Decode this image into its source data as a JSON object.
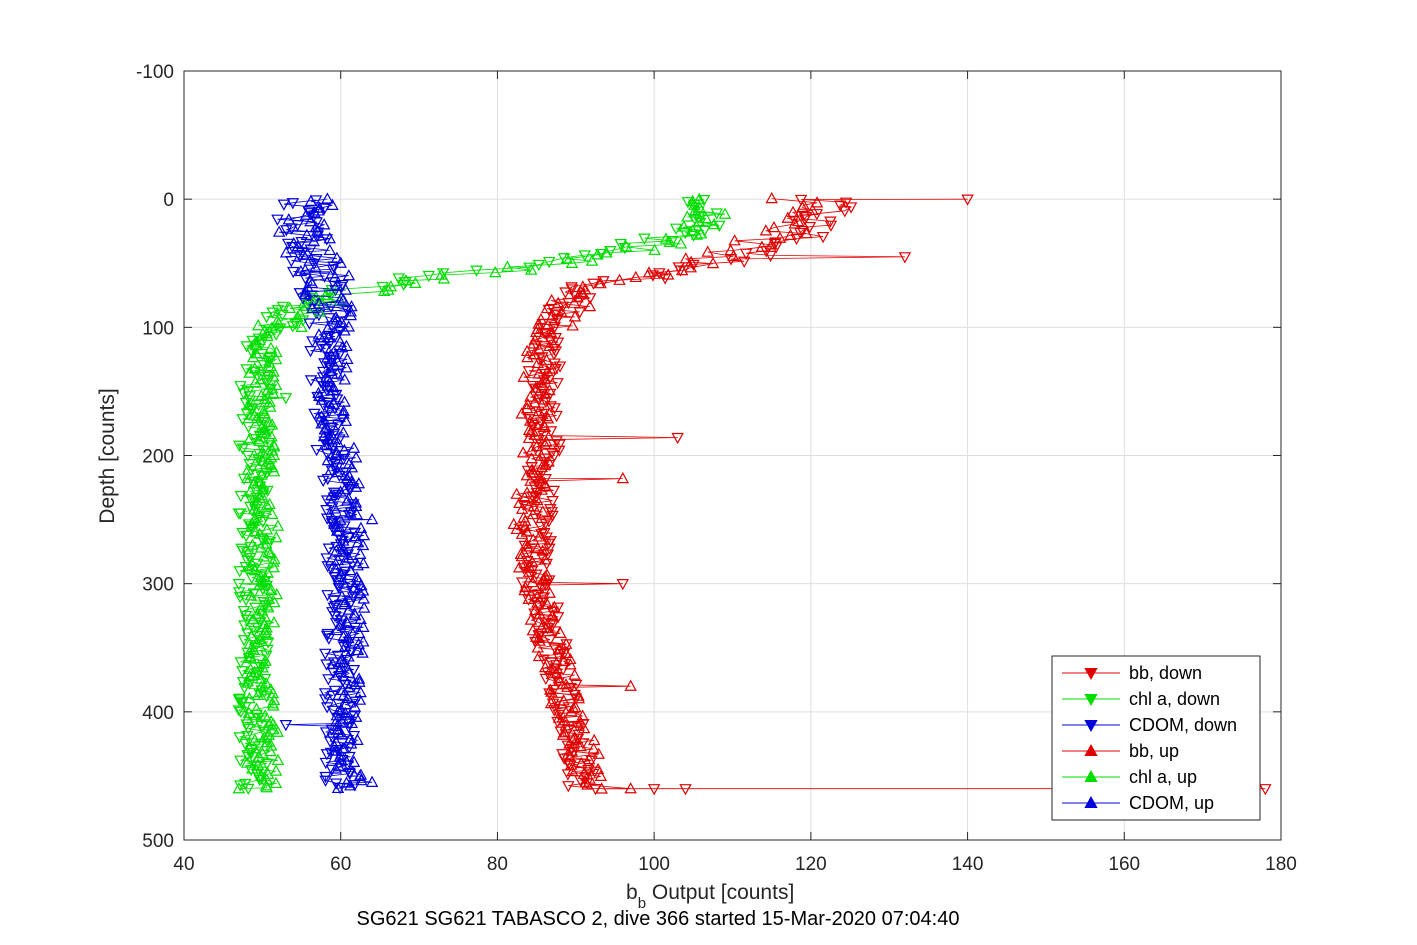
{
  "chart_data": {
    "type": "scatter",
    "xlabel_main": "b",
    "xlabel_sub": "b",
    "xlabel_rest": " Output [counts]",
    "ylabel": "Depth [counts]",
    "caption": "SG621 SG621 TABASCO 2, dive 366 started 15-Mar-2020 07:04:40",
    "xlim": [
      40,
      180
    ],
    "ylim": [
      -100,
      500
    ],
    "y_reversed": true,
    "grid": true,
    "xticks": [
      40,
      60,
      80,
      100,
      120,
      140,
      160,
      180
    ],
    "yticks": [
      -100,
      0,
      100,
      200,
      300,
      400,
      500
    ],
    "legend_position": "bottom-right",
    "series": [
      {
        "name": "bb, down",
        "color": "#e00000",
        "marker": "triangle-down",
        "profile": [
          [
            0,
            120
          ],
          [
            5,
            123
          ],
          [
            15,
            121
          ],
          [
            30,
            119
          ],
          [
            45,
            112
          ],
          [
            60,
            100
          ],
          [
            70,
            91
          ],
          [
            85,
            88
          ],
          [
            100,
            86
          ],
          [
            130,
            86
          ],
          [
            160,
            86
          ],
          [
            200,
            86
          ],
          [
            250,
            85
          ],
          [
            300,
            85
          ],
          [
            350,
            87
          ],
          [
            400,
            89
          ],
          [
            430,
            90
          ],
          [
            460,
            91
          ]
        ],
        "outliers": [
          [
            0,
            140
          ],
          [
            45,
            132
          ],
          [
            186,
            103
          ],
          [
            300,
            96
          ],
          [
            460,
            100
          ],
          [
            460,
            104
          ],
          [
            460,
            178
          ]
        ]
      },
      {
        "name": "chl a, down",
        "color": "#00dd00",
        "marker": "triangle-down",
        "profile": [
          [
            0,
            104
          ],
          [
            10,
            106
          ],
          [
            25,
            105
          ],
          [
            40,
            96
          ],
          [
            50,
            85
          ],
          [
            60,
            72
          ],
          [
            70,
            62
          ],
          [
            80,
            57
          ],
          [
            95,
            52
          ],
          [
            110,
            50
          ],
          [
            150,
            49
          ],
          [
            200,
            49
          ],
          [
            250,
            49
          ],
          [
            300,
            49
          ],
          [
            350,
            49
          ],
          [
            400,
            49
          ],
          [
            460,
            49
          ]
        ],
        "outliers": [
          [
            155,
            53
          ],
          [
            245,
            47
          ],
          [
            300,
            47
          ],
          [
            390,
            47
          ]
        ]
      },
      {
        "name": "CDOM, down",
        "color": "#0000dd",
        "marker": "triangle-down",
        "profile": [
          [
            0,
            55
          ],
          [
            20,
            55
          ],
          [
            40,
            56
          ],
          [
            60,
            57
          ],
          [
            80,
            58
          ],
          [
            100,
            58
          ],
          [
            150,
            58
          ],
          [
            200,
            59
          ],
          [
            250,
            60
          ],
          [
            300,
            60
          ],
          [
            350,
            60
          ],
          [
            400,
            60
          ],
          [
            460,
            60
          ]
        ],
        "outliers": [
          [
            410,
            53
          ]
        ]
      },
      {
        "name": "bb, up",
        "color": "#e00000",
        "marker": "triangle-up",
        "profile": [
          [
            0,
            118
          ],
          [
            10,
            120
          ],
          [
            25,
            117
          ],
          [
            40,
            110
          ],
          [
            55,
            102
          ],
          [
            65,
            95
          ],
          [
            75,
            90
          ],
          [
            90,
            88
          ],
          [
            110,
            86
          ],
          [
            150,
            85
          ],
          [
            200,
            85
          ],
          [
            250,
            84
          ],
          [
            300,
            85
          ],
          [
            350,
            87
          ],
          [
            400,
            89
          ],
          [
            430,
            91
          ],
          [
            460,
            92
          ]
        ],
        "outliers": [
          [
            218,
            96
          ],
          [
            380,
            97
          ],
          [
            460,
            97
          ]
        ]
      },
      {
        "name": "chl a, up",
        "color": "#00dd00",
        "marker": "triangle-up",
        "profile": [
          [
            0,
            103
          ],
          [
            10,
            107
          ],
          [
            25,
            106
          ],
          [
            40,
            98
          ],
          [
            50,
            88
          ],
          [
            60,
            75
          ],
          [
            70,
            64
          ],
          [
            80,
            58
          ],
          [
            95,
            52
          ],
          [
            110,
            50
          ],
          [
            150,
            50
          ],
          [
            200,
            50
          ],
          [
            250,
            50
          ],
          [
            300,
            50
          ],
          [
            350,
            50
          ],
          [
            400,
            50
          ],
          [
            460,
            50
          ]
        ],
        "outliers": [
          [
            100,
            55
          ],
          [
            460,
            47
          ]
        ]
      },
      {
        "name": "CDOM, up",
        "color": "#0000dd",
        "marker": "triangle-up",
        "profile": [
          [
            0,
            56
          ],
          [
            20,
            55
          ],
          [
            40,
            56
          ],
          [
            60,
            58
          ],
          [
            80,
            58
          ],
          [
            100,
            59
          ],
          [
            150,
            59
          ],
          [
            200,
            60
          ],
          [
            250,
            61
          ],
          [
            300,
            61
          ],
          [
            350,
            61
          ],
          [
            400,
            61
          ],
          [
            460,
            61
          ]
        ],
        "outliers": [
          [
            250,
            64
          ],
          [
            455,
            64
          ]
        ]
      }
    ]
  }
}
